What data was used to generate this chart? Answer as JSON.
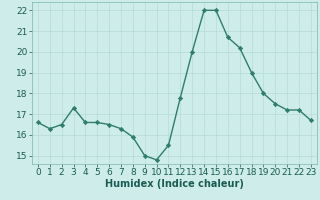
{
  "x": [
    0,
    1,
    2,
    3,
    4,
    5,
    6,
    7,
    8,
    9,
    10,
    11,
    12,
    13,
    14,
    15,
    16,
    17,
    18,
    19,
    20,
    21,
    22,
    23
  ],
  "y": [
    16.6,
    16.3,
    16.5,
    17.3,
    16.6,
    16.6,
    16.5,
    16.3,
    15.9,
    15.0,
    14.8,
    15.5,
    17.8,
    20.0,
    22.0,
    22.0,
    20.7,
    20.2,
    19.0,
    18.0,
    17.5,
    17.2,
    17.2,
    16.7
  ],
  "line_color": "#2e7d6e",
  "marker": "D",
  "marker_size": 2.2,
  "line_width": 1.0,
  "bg_color": "#ceecea",
  "grid_color": "#b8dbd8",
  "xlabel": "Humidex (Indice chaleur)",
  "xlim": [
    -0.5,
    23.5
  ],
  "ylim": [
    14.6,
    22.4
  ],
  "yticks": [
    15,
    16,
    17,
    18,
    19,
    20,
    21,
    22
  ],
  "xticks": [
    0,
    1,
    2,
    3,
    4,
    5,
    6,
    7,
    8,
    9,
    10,
    11,
    12,
    13,
    14,
    15,
    16,
    17,
    18,
    19,
    20,
    21,
    22,
    23
  ],
  "xlabel_fontsize": 7,
  "tick_fontsize": 6.5
}
